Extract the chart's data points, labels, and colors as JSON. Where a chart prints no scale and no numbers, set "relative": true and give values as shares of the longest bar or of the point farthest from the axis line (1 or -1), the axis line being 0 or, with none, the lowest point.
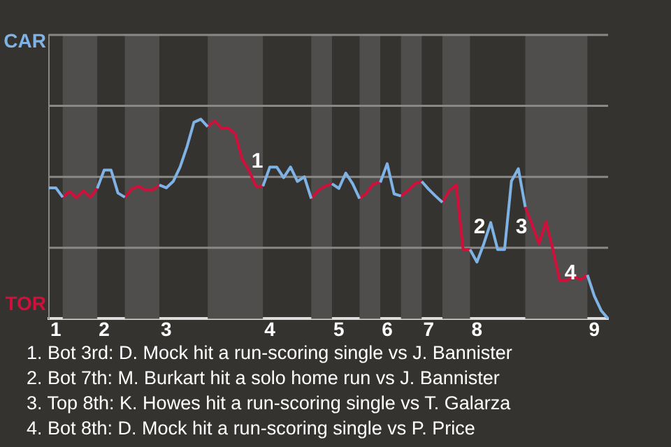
{
  "chart_data": {
    "type": "line",
    "relative": true,
    "categories": [
      null,
      "1",
      null,
      null,
      null,
      null,
      null,
      null,
      "2",
      null,
      null,
      null,
      null,
      null,
      null,
      null,
      null,
      "3",
      null,
      null,
      null,
      null,
      null,
      null,
      null,
      null,
      null,
      null,
      null,
      null,
      null,
      null,
      "4",
      null,
      null,
      null,
      null,
      null,
      null,
      null,
      null,
      null,
      "5",
      null,
      null,
      null,
      null,
      null,
      null,
      "6",
      null,
      null,
      null,
      null,
      null,
      "7",
      null,
      null,
      null,
      null,
      null,
      null,
      "8",
      null,
      null,
      null,
      null,
      null,
      null,
      null,
      null,
      null,
      null,
      null,
      null,
      null,
      null,
      null,
      null,
      "9",
      null,
      null
    ],
    "series": [
      {
        "color": "#7fb2e5",
        "values": [
          0.656,
          0.656,
          0.609,
          null,
          null,
          null,
          null,
          0.653,
          0.745,
          0.745,
          0.63,
          0.609,
          null,
          null,
          null,
          null,
          0.67,
          0.656,
          0.688,
          0.76,
          0.862,
          0.984,
          1,
          0.962,
          null,
          null,
          null,
          null,
          null,
          null,
          null,
          0.664,
          0.76,
          0.76,
          0.707,
          0.76,
          0.688,
          0.711,
          0.602,
          null,
          null,
          0.676,
          0.653,
          0.73,
          0.676,
          0.602,
          null,
          null,
          0.683,
          0.777,
          0.626,
          0.615,
          null,
          null,
          0.688,
          0.649,
          0.615,
          0.583,
          null,
          null,
          null,
          0.347,
          0.284,
          0.376,
          0.482,
          0.347,
          0.347,
          0.69,
          0.752,
          0.56,
          null,
          null,
          null,
          null,
          null,
          null,
          null,
          null,
          0.22,
          0.115,
          0.041,
          0
        ]
      },
      {
        "color": "#d0103a",
        "values": [
          null,
          null,
          0.609,
          0.637,
          0.607,
          0.642,
          0.609,
          0.653,
          null,
          null,
          null,
          0.609,
          0.649,
          0.664,
          0.644,
          0.644,
          0.67,
          null,
          null,
          null,
          null,
          null,
          null,
          0.962,
          0.991,
          0.954,
          0.954,
          0.926,
          0.799,
          0.741,
          0.664,
          0.664,
          null,
          null,
          null,
          null,
          null,
          null,
          0.602,
          0.642,
          0.664,
          0.676,
          null,
          null,
          null,
          0.602,
          0.63,
          0.676,
          0.683,
          null,
          null,
          0.615,
          0.642,
          0.676,
          0.688,
          null,
          null,
          0.583,
          0.642,
          0.671,
          0.347,
          0.347,
          null,
          null,
          null,
          null,
          null,
          null,
          null,
          0.56,
          0.471,
          0.376,
          0.486,
          0.347,
          0.191,
          0.191,
          0.213,
          0.196,
          0.22,
          null,
          null,
          null
        ]
      }
    ],
    "ref_lines": [
      {
        "axis": "y",
        "value": 0.356,
        "color": "#8a8886"
      },
      {
        "axis": "y",
        "value": 0.711,
        "color": "#8a8886"
      },
      {
        "axis": "y",
        "value": 1.067,
        "color": "#8a8886"
      },
      {
        "axis": "y",
        "value": 1.422,
        "color": "#8a8886"
      }
    ],
    "annotations": [
      "CAR",
      "TOR",
      "1",
      "2",
      "3",
      "4",
      "1. Bot 3rd: D. Mock hit a run-scoring single vs J. Bannister",
      "2. Bot 7th: M. Burkart hit a solo home run vs J. Bannister",
      "3. Top 8th: K. Howes hit a run-scoring single vs T. Galarza",
      "4. Bot 8th: D. Mock hit a run-scoring single vs P. Price"
    ]
  }
}
